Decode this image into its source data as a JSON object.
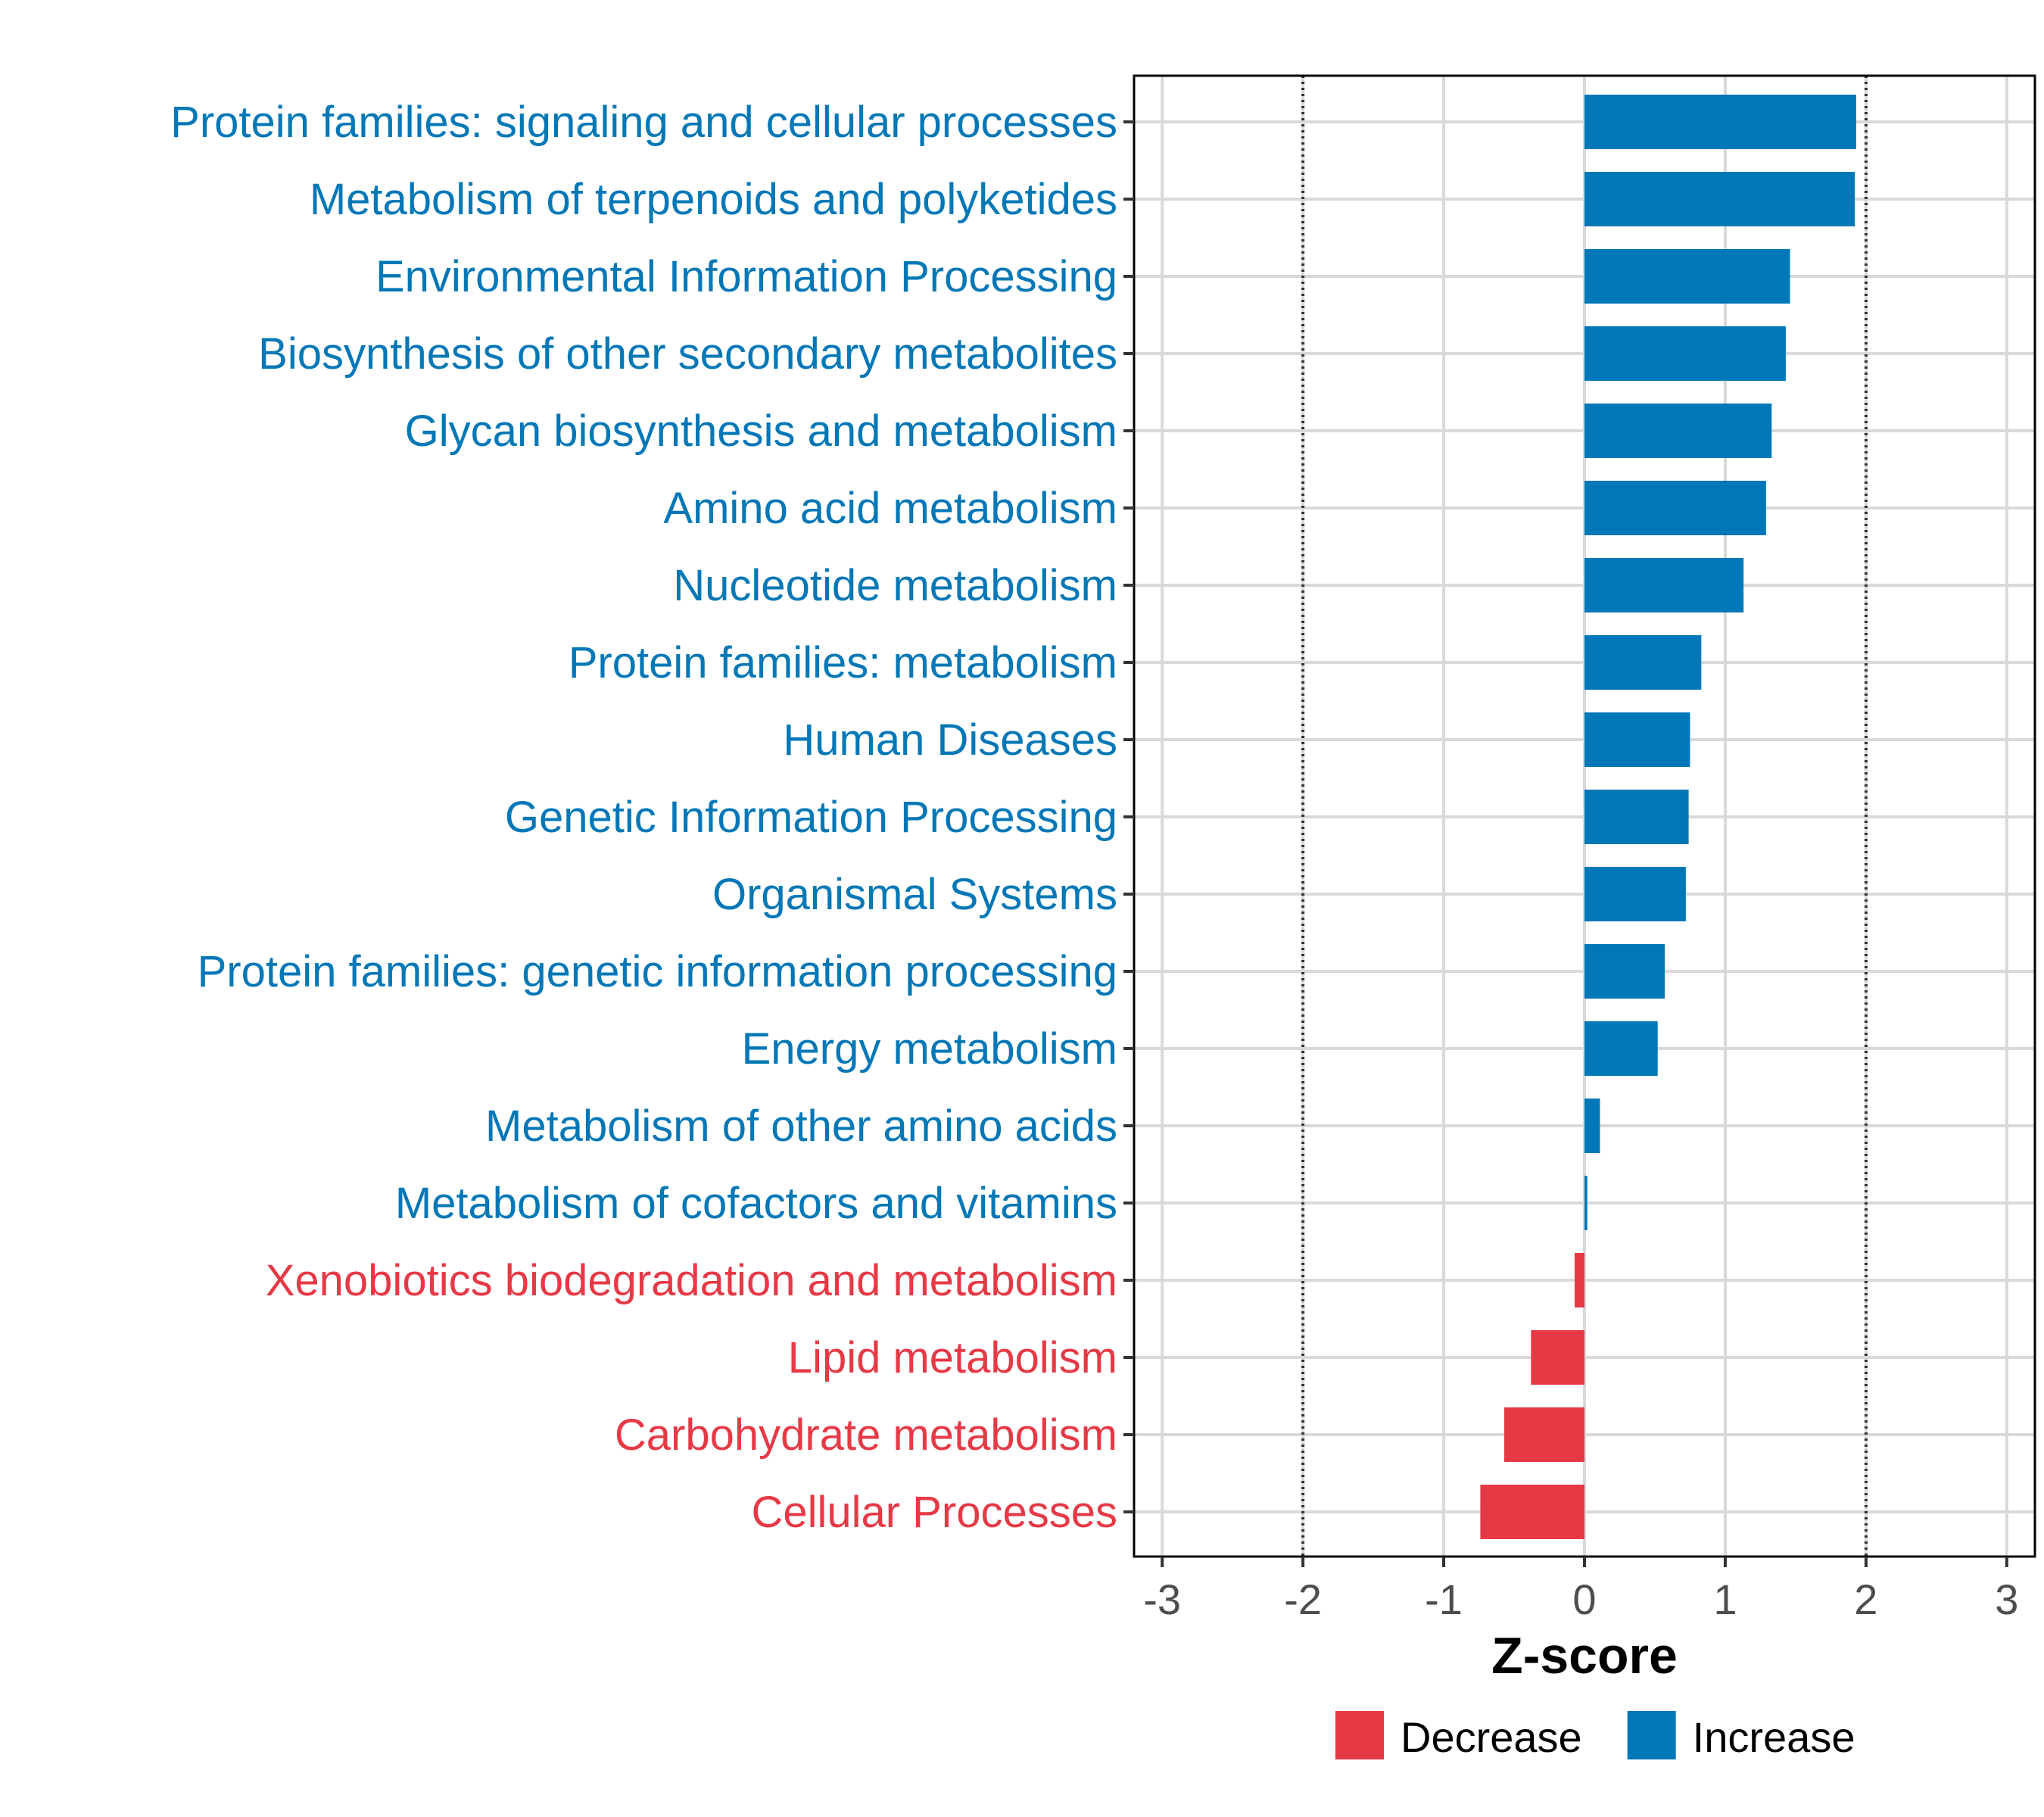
{
  "chart_data": {
    "type": "bar",
    "orientation": "horizontal",
    "xlabel": "Z-score",
    "xlim": [
      -3.2,
      3.2
    ],
    "x_ticks": [
      -3,
      -2,
      -1,
      0,
      1,
      2,
      3
    ],
    "x_tick_labels": [
      "-3",
      "-2",
      "-1",
      "0",
      "1",
      "2",
      "3"
    ],
    "reference_lines": [
      -2,
      2
    ],
    "grid": true,
    "legend_position": "bottom",
    "colors": {
      "Decrease": "#e63946",
      "Increase": "#0077b6"
    },
    "legend": [
      {
        "label": "Decrease",
        "color": "#e63946"
      },
      {
        "label": "Increase",
        "color": "#0077b6"
      }
    ],
    "categories": [
      "Protein families: signaling and cellular processes",
      "Metabolism of terpenoids and polyketides",
      "Environmental Information Processing",
      "Biosynthesis of other secondary metabolites",
      "Glycan biosynthesis and metabolism",
      "Amino acid metabolism",
      "Nucleotide metabolism",
      "Protein families: metabolism",
      "Human Diseases",
      "Genetic Information Processing",
      "Organismal Systems",
      "Protein families: genetic information processing",
      "Energy metabolism",
      "Metabolism of other amino acids",
      "Metabolism of cofactors and vitamins",
      "Xenobiotics biodegradation and metabolism",
      "Lipid metabolism",
      "Carbohydrate metabolism",
      "Cellular Processes"
    ],
    "values": [
      1.93,
      1.92,
      1.46,
      1.43,
      1.33,
      1.29,
      1.13,
      0.83,
      0.75,
      0.74,
      0.72,
      0.57,
      0.52,
      0.11,
      0.02,
      -0.07,
      -0.38,
      -0.57,
      -0.74
    ],
    "direction": [
      "Increase",
      "Increase",
      "Increase",
      "Increase",
      "Increase",
      "Increase",
      "Increase",
      "Increase",
      "Increase",
      "Increase",
      "Increase",
      "Increase",
      "Increase",
      "Increase",
      "Increase",
      "Decrease",
      "Decrease",
      "Decrease",
      "Decrease"
    ]
  }
}
